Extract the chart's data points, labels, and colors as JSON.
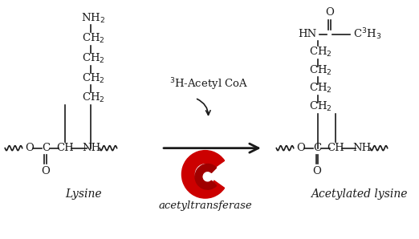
{
  "bg_color": "#ffffff",
  "line_color": "#1a1a1a",
  "red_color": "#cc0000",
  "label_fontsize": 10,
  "chem_fontsize": 9.5,
  "lysine_label": "Lysine",
  "acetylated_label": "Acetylated lysine",
  "enzyme_label": "acetyltransferase",
  "reagent_label": "$^{3}$H-Acetyl CoA"
}
